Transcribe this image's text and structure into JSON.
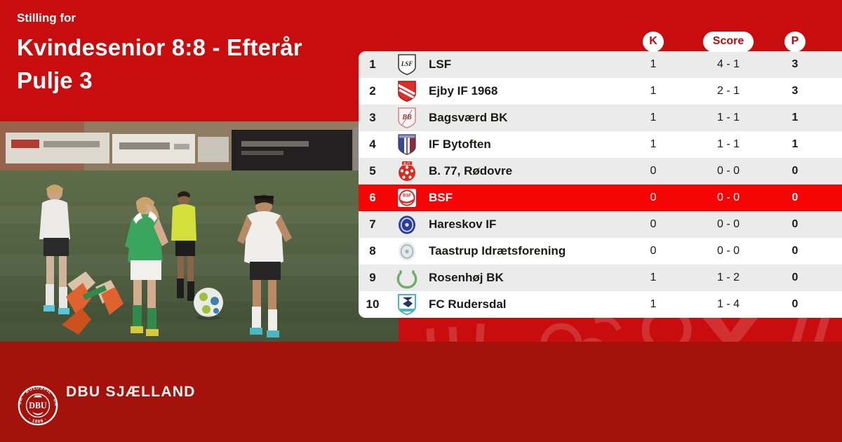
{
  "colors": {
    "background_red": "#c90d0e",
    "highlight_red": "#f70505",
    "footer_red": "#a3130c",
    "row_alt_gray": "#ebebeb",
    "row_white": "#ffffff",
    "pill_text_red": "#b30d0d",
    "text_dark": "#1a1a18",
    "text_white": "#ffffff"
  },
  "header": {
    "eyebrow": "Stilling for",
    "title_line1": "Kvindesenior 8:8 - Efterår",
    "title_line2": "Pulje 3"
  },
  "standings": {
    "column_headers": [
      {
        "id": "k",
        "label": "K"
      },
      {
        "id": "score",
        "label": "Score"
      },
      {
        "id": "p",
        "label": "P"
      }
    ],
    "rows": [
      {
        "pos": "1",
        "club": "LSF",
        "k": "1",
        "score": "4 - 1",
        "p": "3",
        "highlighted": false,
        "logo": {
          "name": "lsf-club-logo",
          "type": "shield-text",
          "colors": [
            "#ffffff",
            "#3b3b3b",
            "#1f1f1f"
          ],
          "text": "LSF"
        }
      },
      {
        "pos": "2",
        "club": "Ejby IF 1968",
        "k": "1",
        "score": "2 - 1",
        "p": "3",
        "highlighted": false,
        "logo": {
          "name": "ejby-club-logo",
          "type": "shield-stripes",
          "colors": [
            "#dd2f27",
            "#b11414",
            "#ffffff"
          ],
          "text": ""
        }
      },
      {
        "pos": "3",
        "club": "Bagsværd BK",
        "k": "1",
        "score": "1 - 1",
        "p": "1",
        "highlighted": false,
        "logo": {
          "name": "bagsvaerd-club-logo",
          "type": "shield-text",
          "colors": [
            "#fdf4f3",
            "#d18a8f",
            "#9e3038"
          ],
          "text": "BB"
        }
      },
      {
        "pos": "4",
        "club": "IF Bytoften",
        "k": "1",
        "score": "1 - 1",
        "p": "1",
        "highlighted": false,
        "logo": {
          "name": "bytoften-club-logo",
          "type": "shield-bars",
          "colors": [
            "#34498f",
            "#f2f3f7",
            "#8c2b3e",
            "#8e9cc9"
          ],
          "text": ""
        }
      },
      {
        "pos": "5",
        "club": "B. 77, Rødovre",
        "k": "0",
        "score": "0 - 0",
        "p": "0",
        "highlighted": false,
        "logo": {
          "name": "b77-club-logo",
          "type": "circle-ball",
          "colors": [
            "#da2d22",
            "#ffffff"
          ],
          "text": "B.77"
        }
      },
      {
        "pos": "6",
        "club": "BSF",
        "k": "0",
        "score": "0 - 0",
        "p": "0",
        "highlighted": true,
        "logo": {
          "name": "bsf-club-logo",
          "type": "square-circle",
          "colors": [
            "#ffffff",
            "#d32b26"
          ],
          "text": "BSF"
        }
      },
      {
        "pos": "7",
        "club": "Hareskov IF",
        "k": "0",
        "score": "0 - 0",
        "p": "0",
        "highlighted": false,
        "logo": {
          "name": "hareskov-club-logo",
          "type": "circle-ring",
          "colors": [
            "#2c3da0",
            "#dfe3f2"
          ],
          "text": ""
        }
      },
      {
        "pos": "8",
        "club": "Taastrup Idrætsforening",
        "k": "0",
        "score": "0 - 0",
        "p": "0",
        "highlighted": false,
        "logo": {
          "name": "taastrup-club-logo",
          "type": "circle-ring",
          "colors": [
            "#e6e9eb",
            "#9fb0b8"
          ],
          "text": ""
        }
      },
      {
        "pos": "9",
        "club": "Rosenhøj BK",
        "k": "1",
        "score": "1 - 2",
        "p": "0",
        "highlighted": false,
        "logo": {
          "name": "rosenhoj-club-logo",
          "type": "wreath",
          "colors": [
            "#6fae68"
          ],
          "text": ""
        }
      },
      {
        "pos": "10",
        "club": "FC Rudersdal",
        "k": "1",
        "score": "1 - 4",
        "p": "0",
        "highlighted": false,
        "logo": {
          "name": "rudersdal-club-logo",
          "type": "shield-wave",
          "colors": [
            "#ffffff",
            "#47b5c4",
            "#203468"
          ],
          "text": ""
        }
      }
    ]
  },
  "footer": {
    "brand": "DBU SJÆLLAND",
    "seal": {
      "arc_top": "DANSK · BOLDSPIL · UNION",
      "arc_bottom": "· 1889 ·",
      "center": "DBU"
    }
  }
}
